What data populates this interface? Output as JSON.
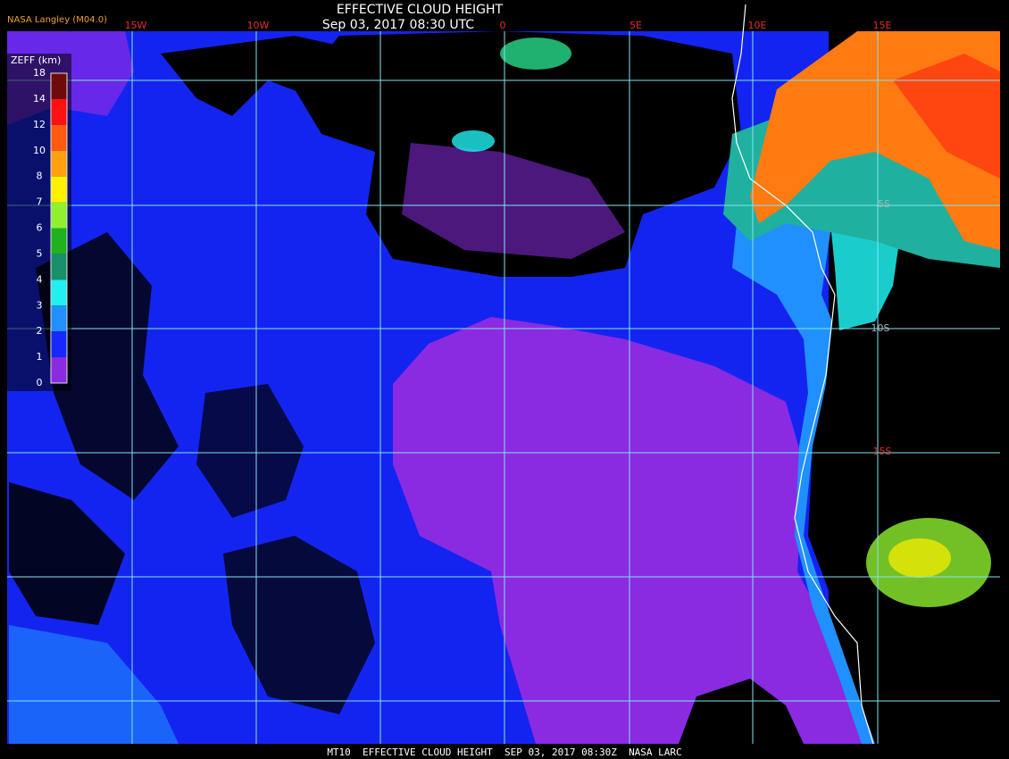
{
  "header": {
    "title": "EFFECTIVE CLOUD HEIGHT",
    "subtitle": "Sep 03, 2017 08:30 UTC",
    "source": "NASA Langley (M04.0)"
  },
  "legend": {
    "title": "ZEFF (km)",
    "ticks": [
      18,
      14,
      12,
      10,
      8,
      7,
      6,
      5,
      4,
      3,
      2,
      1,
      0
    ],
    "colors": [
      "#6e0a0a",
      "#ff1010",
      "#ff5a10",
      "#ffa010",
      "#fff000",
      "#90f030",
      "#20b020",
      "#18906a",
      "#20f0f0",
      "#2090ff",
      "#1428ff",
      "#8a2be2"
    ]
  },
  "map": {
    "lon_labels": [
      "15W",
      "10W",
      "0",
      "5E",
      "10E",
      "15E"
    ],
    "lat_labels": [
      "5S",
      "10S",
      "15S"
    ]
  },
  "footer": "MT10  EFFECTIVE CLOUD HEIGHT  SEP 03, 2017 08:30Z  NASA LARC"
}
